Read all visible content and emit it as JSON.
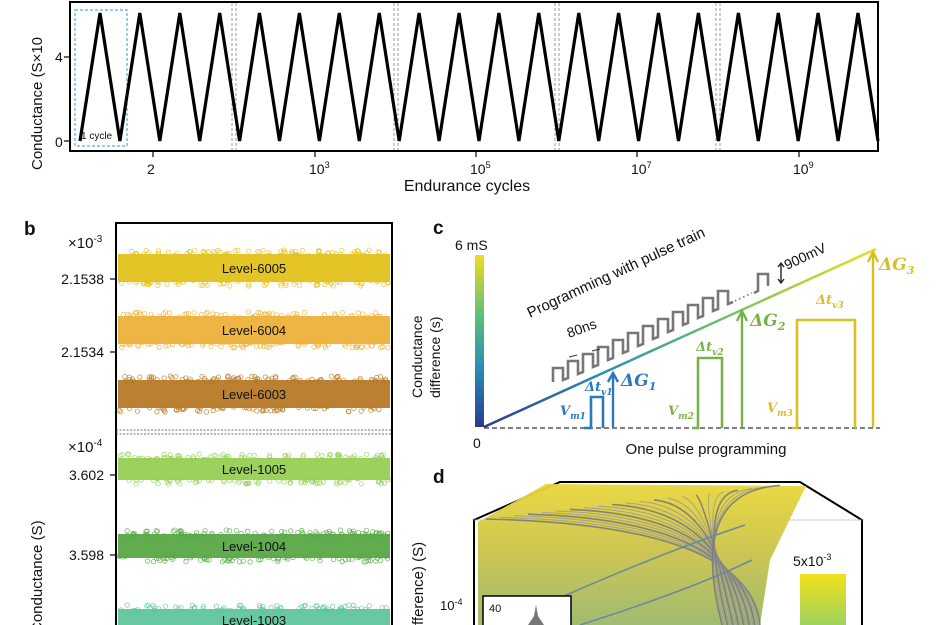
{
  "panel_a": {
    "ylabel": "Conductance (S×10",
    "yticks": [
      "4",
      "0"
    ],
    "xticks": [
      "2",
      "10",
      "10",
      "10",
      "10"
    ],
    "xtick_exps": [
      "",
      "3",
      "5",
      "7",
      "9"
    ],
    "xlabel": "Endurance cycles",
    "cycle_box_label": "1 cycle",
    "colors": {
      "line": "#000000",
      "box": "#5aa9d6",
      "separator": "#999999"
    }
  },
  "panel_b": {
    "label": "b",
    "top_multiplier": "×10",
    "top_multiplier_exp": "-3",
    "top_yticks": [
      "2.1538",
      "2.1534"
    ],
    "bottom_multiplier": "×10",
    "bottom_multiplier_exp": "-4",
    "bottom_yticks": [
      "3.602",
      "3.598"
    ],
    "ylabel": "Conductance (S)",
    "bands": [
      {
        "label": "Level-6005",
        "color": "#e3c21a"
      },
      {
        "label": "Level-6004",
        "color": "#eeb23a"
      },
      {
        "label": "Level-6003",
        "color": "#b87a25"
      },
      {
        "label": "Level-1005",
        "color": "#96cf54"
      },
      {
        "label": "Level-1004",
        "color": "#58a845"
      },
      {
        "label": "Level-1003",
        "color": "#5fc69c"
      }
    ]
  },
  "panel_c": {
    "label": "c",
    "colorbar_top": "6 mS",
    "zero": "0",
    "ylabel_line1": "Conductance",
    "ylabel_line2": "difference (s)",
    "pulse_train_label": "Programming with pulse train",
    "pulse_width_label": "80ns",
    "amplitude_label": "900mV",
    "xlabel": "One pulse programming",
    "vm": [
      {
        "sym": "V",
        "sub": "m1",
        "color": "#2a79bd"
      },
      {
        "sym": "V",
        "sub": "m2",
        "color": "#7ab24a"
      },
      {
        "sym": "V",
        "sub": "m3",
        "color": "#d9c020"
      }
    ],
    "dt": [
      {
        "sym": "Δt",
        "sub": "v1",
        "color": "#2a79bd"
      },
      {
        "sym": "Δt",
        "sub": "v2",
        "color": "#7ab24a"
      },
      {
        "sym": "Δt",
        "sub": "v3",
        "color": "#d9c020"
      }
    ],
    "dg": [
      {
        "sym": "ΔG",
        "sub": "1",
        "color": "#2a79bd"
      },
      {
        "sym": "ΔG",
        "sub": "2",
        "color": "#7ab24a"
      },
      {
        "sym": "ΔG",
        "sub": "3",
        "color": "#d9c020"
      }
    ]
  },
  "panel_d": {
    "label": "d",
    "ylabel": "fference) (S)",
    "ytick": "10",
    "ytick_exp": "-4",
    "inset_tick": "40",
    "colorbar_label": "5x10",
    "colorbar_exp": "-3"
  },
  "chart_data": [
    {
      "type": "line",
      "title": "",
      "xlabel": "Endurance cycles",
      "ylabel": "Conductance (S×10",
      "x_tick_labels": [
        "2",
        "10^3",
        "10^5",
        "10^7",
        "10^9"
      ],
      "y_tick_labels": [
        "0",
        "4"
      ],
      "series": [
        {
          "values": [
            0,
            6,
            0,
            6,
            0,
            6,
            0,
            6,
            0,
            6,
            0,
            6,
            0,
            6,
            0,
            6,
            0,
            6,
            0,
            6,
            0,
            6,
            0,
            6,
            0,
            6,
            0,
            6,
            0,
            6,
            0,
            6,
            0,
            6,
            0,
            6,
            0,
            6,
            0,
            6,
            0
          ]
        }
      ],
      "ylim": [
        0,
        6.5
      ]
    },
    {
      "type": "scatter",
      "ylabel": "Conductance (S)",
      "series": [
        {
          "name": "Level-6005",
          "y_label_scale": "×10^-3",
          "value": 2.1539
        },
        {
          "name": "Level-6004",
          "y_label_scale": "×10^-3",
          "value": 2.1535
        },
        {
          "name": "Level-6003",
          "y_label_scale": "×10^-3",
          "value": 2.1531
        },
        {
          "name": "Level-1005",
          "y_label_scale": "×10^-4",
          "value": 3.602
        },
        {
          "name": "Level-1004",
          "y_label_scale": "×10^-4",
          "value": 3.598
        },
        {
          "name": "Level-1003",
          "y_label_scale": "×10^-4",
          "value": 3.594
        }
      ]
    }
  ]
}
